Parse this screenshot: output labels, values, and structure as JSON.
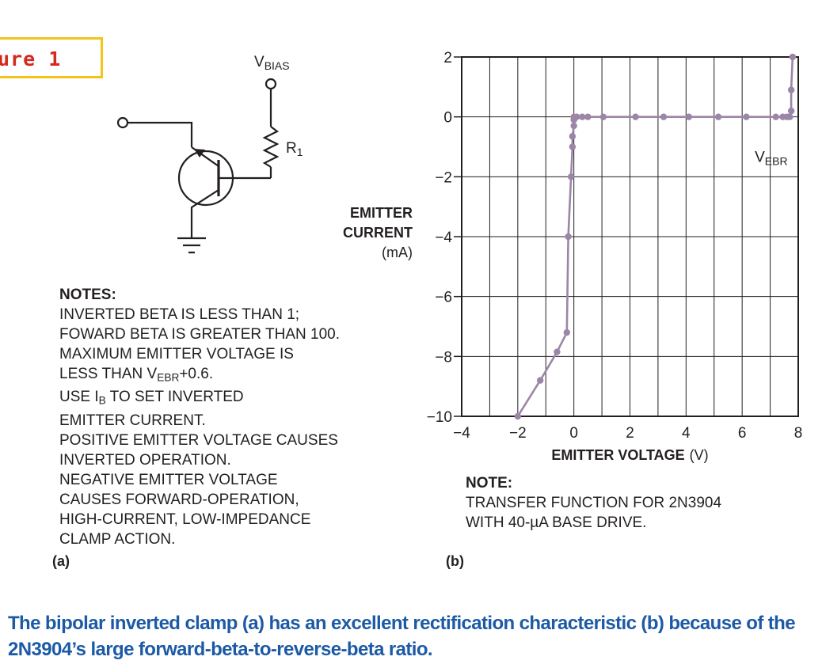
{
  "figure_label": "ure 1",
  "circuit": {
    "vbias_label": "V",
    "vbias_sub": "BIAS",
    "r1_label": "R",
    "r1_sub": "1"
  },
  "notes_a": {
    "heading": "NOTES:",
    "lines": [
      {
        "pre": "INVERTED BETA IS LESS THAN 1;"
      },
      {
        "pre": "FOWARD BETA IS GREATER THAN 100."
      },
      {
        "pre": "MAXIMUM EMITTER VOLTAGE IS"
      },
      {
        "pre": "LESS THAN V",
        "sub": "EBR",
        "post": "+0.6."
      },
      {
        "pre": "USE I",
        "sub": "B",
        "post": " TO SET INVERTED"
      },
      {
        "pre": "EMITTER CURRENT."
      },
      {
        "pre": "POSITIVE EMITTER VOLTAGE CAUSES"
      },
      {
        "pre": "INVERTED OPERATION."
      },
      {
        "pre": "NEGATIVE EMITTER VOLTAGE"
      },
      {
        "pre": "CAUSES FORWARD-OPERATION,"
      },
      {
        "pre": "HIGH-CURRENT, LOW-IMPEDANCE"
      },
      {
        "pre": "CLAMP ACTION."
      }
    ]
  },
  "panel_a_label": "(a)",
  "panel_b_label": "(b)",
  "notes_b": {
    "heading": "NOTE:",
    "lines": [
      "TRANSFER FUNCTION FOR 2N3904",
      "WITH 40-µA BASE DRIVE."
    ]
  },
  "caption_lines": [
    "The bipolar inverted clamp (a) has an excellent rectification characteristic (b) because of the",
    "2N3904’s large forward-beta-to-reverse-beta ratio."
  ],
  "chart_data": {
    "type": "line",
    "xlabel": "EMITTER VOLTAGE",
    "xlabel_unit": "(V)",
    "ylabel_lines": [
      "EMITTER",
      "CURRENT"
    ],
    "ylabel_unit": "(mA)",
    "xlim": [
      -4,
      8
    ],
    "ylim": [
      -10,
      2
    ],
    "xticks": [
      -4,
      -2,
      0,
      2,
      4,
      6,
      8
    ],
    "xtick_labels": [
      "−4",
      "−2",
      "0",
      "2",
      "4",
      "6",
      "8"
    ],
    "yticks": [
      -10,
      -8,
      -6,
      -4,
      -2,
      0,
      2
    ],
    "ytick_labels": [
      "−10",
      "−8",
      "−6",
      "−4",
      "−2",
      "0",
      "2"
    ],
    "grid": true,
    "line_color": "#9b86a8",
    "annotation": {
      "text": "V",
      "sub": "EBR"
    },
    "series": [
      {
        "points": [
          [
            -2.0,
            -10.0
          ],
          [
            -1.2,
            -8.8
          ],
          [
            -0.6,
            -7.85
          ],
          [
            -0.25,
            -7.2
          ],
          [
            -0.2,
            -4.0
          ],
          [
            -0.1,
            -2.0
          ],
          [
            -0.05,
            -1.0
          ],
          [
            -0.05,
            -0.65
          ],
          [
            0.0,
            -0.3
          ],
          [
            0.0,
            -0.1
          ],
          [
            0.0,
            0.0
          ],
          [
            0.1,
            0.0
          ],
          [
            0.3,
            0.0
          ],
          [
            0.5,
            0.0
          ],
          [
            1.05,
            0.0
          ],
          [
            2.2,
            0.0
          ],
          [
            3.2,
            0.0
          ],
          [
            4.1,
            0.0
          ],
          [
            5.15,
            0.0
          ],
          [
            6.15,
            0.0
          ],
          [
            7.2,
            0.0
          ],
          [
            7.45,
            0.0
          ],
          [
            7.6,
            0.0
          ],
          [
            7.7,
            0.0
          ],
          [
            7.75,
            0.2
          ],
          [
            7.75,
            0.9
          ],
          [
            7.8,
            2.0
          ]
        ]
      }
    ]
  }
}
